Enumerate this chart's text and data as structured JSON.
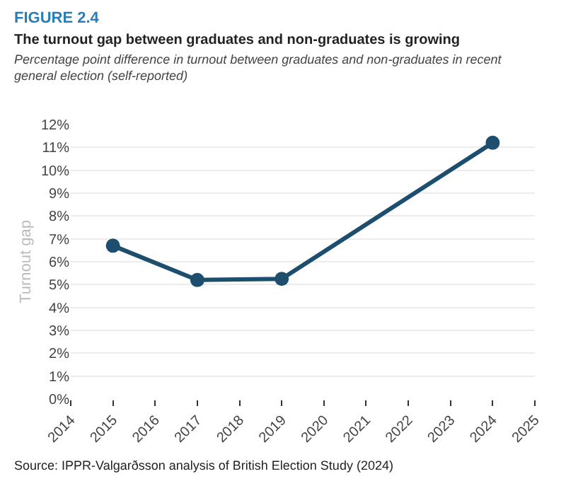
{
  "chart_data": {
    "type": "line",
    "title": "The turnout gap between graduates and non-graduates is growing",
    "subtitle": "Percentage point difference in turnout between graduates and non-graduates in recent general election (self-reported)",
    "annotations": [
      "FIGURE 2.4",
      "Source: IPPR-Valgarðsson analysis of British Election Study (2024)"
    ],
    "ylabel": "Turnout gap",
    "x": [
      2015,
      2017,
      2019,
      2024
    ],
    "series": [
      {
        "color": "#1d4e6e",
        "values": [
          6.7,
          5.2,
          5.25,
          11.2
        ]
      }
    ],
    "xlim": [
      2014,
      2025
    ],
    "xticks": [
      2014,
      2015,
      2016,
      2017,
      2018,
      2019,
      2020,
      2021,
      2022,
      2023,
      2024,
      2025
    ],
    "ylim": [
      0,
      12
    ],
    "yticks": [
      {
        "value": 0,
        "label": "0%"
      },
      {
        "value": 1,
        "label": "1%"
      },
      {
        "value": 2,
        "label": "2%"
      },
      {
        "value": 3,
        "label": "3%"
      },
      {
        "value": 4,
        "label": "4%"
      },
      {
        "value": 5,
        "label": "5%"
      },
      {
        "value": 6,
        "label": "6%"
      },
      {
        "value": 7,
        "label": "7%"
      },
      {
        "value": 8,
        "label": "8%"
      },
      {
        "value": 9,
        "label": "9%"
      },
      {
        "value": 10,
        "label": "10%"
      },
      {
        "value": 11,
        "label": "11%"
      },
      {
        "value": 12,
        "label": "12%"
      }
    ],
    "grid": "y",
    "marker": "circle",
    "line_style": "solid"
  }
}
